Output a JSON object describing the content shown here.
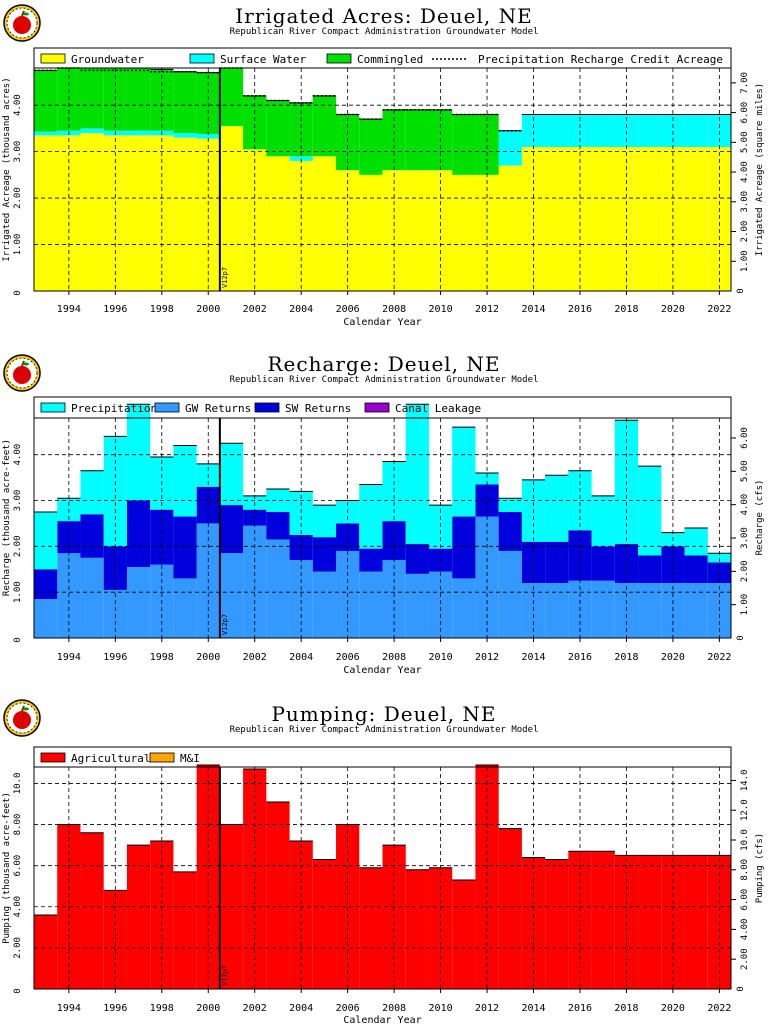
{
  "panels": [
    {
      "title": "Irrigated Acres: Deuel, NE",
      "subtitle": "Republican River Compact Administration Groundwater Model",
      "logo_icon": "apple-logo-icon",
      "y_left_label": "Irrigated Acreage (thousand acres)",
      "y_right_label": "Irrigated Acreage (square miles)",
      "x_label": "Calendar Year",
      "marker_label": "V12p7"
    },
    {
      "title": "Recharge: Deuel, NE",
      "subtitle": "Republican River Compact Administration Groundwater Model",
      "logo_icon": "apple-logo-icon",
      "y_left_label": "Recharge (thousand acre-feet)",
      "y_right_label": "Recharge (cfs)",
      "x_label": "Calendar Year",
      "marker_label": "V12p7"
    },
    {
      "title": "Pumping: Deuel, NE",
      "subtitle": "Republican River Compact Administration Groundwater Model",
      "logo_icon": "apple-logo-icon",
      "y_left_label": "Pumping (thousand acre-feet)",
      "y_right_label": "Pumping (cfs)",
      "x_label": "Calendar Year",
      "marker_label": "V12p7"
    }
  ],
  "chart_data": [
    {
      "type": "bar",
      "stacked": true,
      "title": "Irrigated Acres: Deuel, NE",
      "xlabel": "Calendar Year",
      "ylabel": "Irrigated Acreage (thousand acres)",
      "ylabel_right": "Irrigated Acreage (square miles)",
      "categories": [
        1993,
        1994,
        1995,
        1996,
        1997,
        1998,
        1999,
        2000,
        2001,
        2002,
        2003,
        2004,
        2005,
        2006,
        2007,
        2008,
        2009,
        2010,
        2011,
        2012,
        2013,
        2014,
        2015,
        2016,
        2017,
        2018,
        2019,
        2020,
        2021,
        2022
      ],
      "ylim": [
        0,
        4.8
      ],
      "yticks": [
        "1.00",
        "2.00",
        "3.00",
        "4.00"
      ],
      "ylim_right": [
        0,
        7.5
      ],
      "yticks_right": [
        "1.00",
        "2.00",
        "3.00",
        "4.00",
        "5.00",
        "6.00",
        "7.00"
      ],
      "xticks": [
        "1994",
        "1996",
        "1998",
        "2000",
        "2002",
        "2004",
        "2006",
        "2008",
        "2010",
        "2012",
        "2014",
        "2016",
        "2018",
        "2020",
        "2022"
      ],
      "marker_year": 2000.5,
      "grid": true,
      "legend_position": "top",
      "series": [
        {
          "name": "Groundwater",
          "color": "#ffff00",
          "values": [
            3.35,
            3.35,
            3.4,
            3.35,
            3.35,
            3.35,
            3.3,
            3.28,
            3.55,
            3.05,
            2.9,
            2.8,
            2.9,
            2.6,
            2.5,
            2.6,
            2.6,
            2.6,
            2.5,
            2.5,
            2.7,
            3.1,
            3.1,
            3.1,
            3.1,
            3.1,
            3.1,
            3.1,
            3.1,
            3.1
          ]
        },
        {
          "name": "Surface Water",
          "color": "#00ffff",
          "values": [
            0.08,
            0.1,
            0.1,
            0.1,
            0.1,
            0.1,
            0.1,
            0.1,
            0,
            0,
            0,
            0.1,
            0,
            0,
            0,
            0,
            0,
            0,
            0,
            0,
            0.75,
            0.7,
            0.7,
            0.7,
            0.7,
            0.7,
            0.7,
            0.7,
            0.7,
            0.7
          ]
        },
        {
          "name": "Commingled",
          "color": "#00e000",
          "values": [
            1.32,
            1.35,
            1.3,
            1.35,
            1.35,
            1.32,
            1.32,
            1.32,
            1.25,
            1.15,
            1.2,
            1.15,
            1.3,
            1.2,
            1.2,
            1.3,
            1.3,
            1.3,
            1.3,
            1.3,
            0,
            0,
            0,
            0,
            0,
            0,
            0,
            0,
            0,
            0
          ]
        }
      ],
      "precip_credit": {
        "name": "Precipitation Recharge Credit Acreage",
        "values": [
          4.75,
          4.8,
          4.75,
          4.75,
          4.75,
          4.72,
          4.72,
          4.7,
          4.8,
          4.2,
          4.1,
          4.05,
          4.2,
          3.8,
          3.7,
          3.9,
          3.9,
          3.9,
          3.8,
          3.8,
          3.45,
          null,
          null,
          null,
          null,
          null,
          null,
          null,
          null,
          null
        ]
      }
    },
    {
      "type": "bar",
      "stacked": true,
      "title": "Recharge: Deuel, NE",
      "xlabel": "Calendar Year",
      "ylabel": "Recharge (thousand acre-feet)",
      "ylabel_right": "Recharge (cfs)",
      "categories": [
        1993,
        1994,
        1995,
        1996,
        1997,
        1998,
        1999,
        2000,
        2001,
        2002,
        2003,
        2004,
        2005,
        2006,
        2007,
        2008,
        2009,
        2010,
        2011,
        2012,
        2013,
        2014,
        2015,
        2016,
        2017,
        2018,
        2019,
        2020,
        2021,
        2022
      ],
      "ylim": [
        0,
        4.8
      ],
      "yticks": [
        "1.00",
        "2.00",
        "3.00",
        "4.00"
      ],
      "ylim_right": [
        0,
        6.6
      ],
      "yticks_right": [
        "1.00",
        "2.00",
        "3.00",
        "4.00",
        "5.00",
        "6.00"
      ],
      "xticks": [
        "1994",
        "1996",
        "1998",
        "2000",
        "2002",
        "2004",
        "2006",
        "2008",
        "2010",
        "2012",
        "2014",
        "2016",
        "2018",
        "2020",
        "2022"
      ],
      "marker_year": 2000.5,
      "grid": true,
      "legend_position": "top",
      "series": [
        {
          "name": "GW Returns",
          "color": "#3399ff",
          "values": [
            0.85,
            1.85,
            1.75,
            1.05,
            1.55,
            1.6,
            1.3,
            2.5,
            1.85,
            2.45,
            2.15,
            1.7,
            1.45,
            1.9,
            1.45,
            1.7,
            1.4,
            1.45,
            1.3,
            2.65,
            1.9,
            1.2,
            1.2,
            1.25,
            1.25,
            1.2,
            1.2,
            1.2,
            1.2,
            1.2
          ]
        },
        {
          "name": "SW Returns",
          "color": "#0000dd",
          "values": [
            0.65,
            0.7,
            0.95,
            0.95,
            1.45,
            1.2,
            1.35,
            0.8,
            1.05,
            0.35,
            0.6,
            0.55,
            0.75,
            0.6,
            0.5,
            0.85,
            0.65,
            0.5,
            1.35,
            0.7,
            0.85,
            0.9,
            0.9,
            1.1,
            0.75,
            0.85,
            0.6,
            0.8,
            0.6,
            0.45
          ]
        },
        {
          "name": "Canal Leakage",
          "color": "#9900cc",
          "values": [
            0,
            0,
            0,
            0,
            0,
            0,
            0,
            0,
            0,
            0,
            0,
            0,
            0,
            0,
            0,
            0,
            0,
            0,
            0,
            0,
            0,
            0,
            0,
            0,
            0,
            0,
            0,
            0,
            0,
            0
          ]
        },
        {
          "name": "Precipitation",
          "color": "#00ffff",
          "values": [
            1.25,
            0.5,
            0.95,
            2.4,
            2.1,
            1.15,
            1.55,
            0.5,
            1.35,
            0.3,
            0.5,
            0.95,
            0.7,
            0.5,
            1.4,
            1.3,
            3.05,
            0.95,
            1.95,
            0.25,
            0.3,
            1.35,
            1.45,
            1.3,
            1.1,
            2.7,
            1.95,
            0.3,
            0.6,
            0.2
          ]
        }
      ]
    },
    {
      "type": "bar",
      "stacked": true,
      "title": "Pumping: Deuel, NE",
      "xlabel": "Calendar Year",
      "ylabel": "Pumping (thousand acre-feet)",
      "ylabel_right": "Pumping (cfs)",
      "categories": [
        1993,
        1994,
        1995,
        1996,
        1997,
        1998,
        1999,
        2000,
        2001,
        2002,
        2003,
        2004,
        2005,
        2006,
        2007,
        2008,
        2009,
        2010,
        2011,
        2012,
        2013,
        2014,
        2015,
        2016,
        2017,
        2018,
        2019,
        2020,
        2021,
        2022
      ],
      "ylim": [
        0,
        10.8
      ],
      "yticks": [
        "2.00",
        "4.00",
        "6.00",
        "8.00",
        "10.0"
      ],
      "ylim_right": [
        0,
        14.9
      ],
      "yticks_right": [
        "2.00",
        "4.00",
        "6.00",
        "8.00",
        "10.0",
        "12.0",
        "14.0"
      ],
      "xticks": [
        "1994",
        "1996",
        "1998",
        "2000",
        "2002",
        "2004",
        "2006",
        "2008",
        "2010",
        "2012",
        "2014",
        "2016",
        "2018",
        "2020",
        "2022"
      ],
      "marker_year": 2000.5,
      "grid": true,
      "legend_position": "top",
      "series": [
        {
          "name": "Agricultural",
          "color": "#ff0000",
          "values": [
            3.6,
            8.0,
            7.6,
            4.8,
            7.0,
            7.2,
            5.7,
            10.9,
            8.0,
            10.7,
            9.1,
            7.2,
            6.3,
            8.0,
            5.9,
            7.0,
            5.8,
            5.9,
            5.3,
            10.9,
            7.8,
            6.4,
            6.3,
            6.7,
            6.7,
            6.5,
            6.5,
            6.5,
            6.5,
            6.5
          ]
        },
        {
          "name": "M&I",
          "color": "#ffa500",
          "values": [
            0,
            0,
            0,
            0,
            0,
            0,
            0,
            0,
            0,
            0,
            0,
            0,
            0,
            0,
            0,
            0,
            0,
            0,
            0,
            0,
            0,
            0,
            0,
            0,
            0,
            0,
            0,
            0,
            0,
            0
          ]
        }
      ]
    }
  ]
}
